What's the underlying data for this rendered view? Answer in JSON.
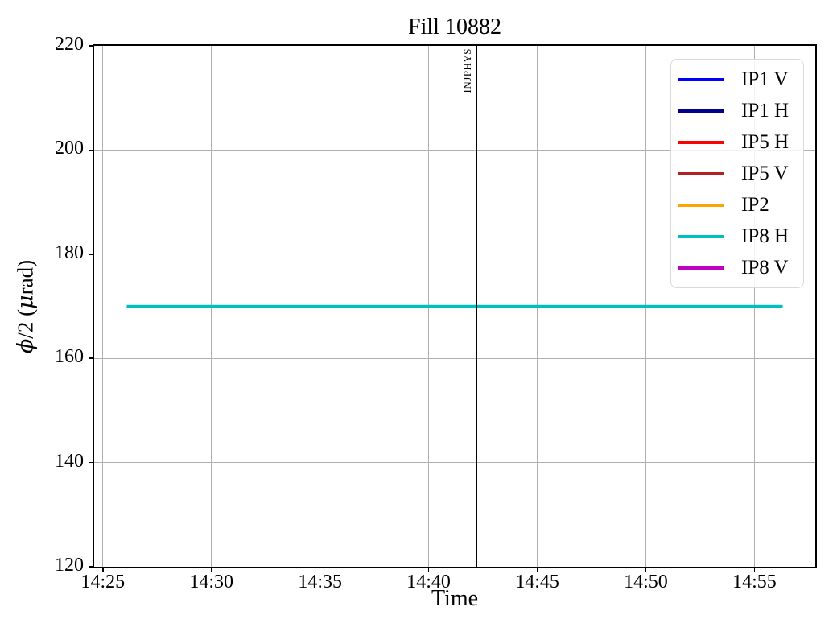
{
  "chart_data": {
    "type": "line",
    "title": "Fill 10882",
    "xlabel": "Time",
    "ylabel": "ϕ/2 (μrad)",
    "x_unit": "minutes after 14:00",
    "xlim": [
      24.6,
      57.8
    ],
    "ylim": [
      120,
      220
    ],
    "x_ticks": [
      {
        "value": 25,
        "label": "14:25"
      },
      {
        "value": 30,
        "label": "14:30"
      },
      {
        "value": 35,
        "label": "14:35"
      },
      {
        "value": 40,
        "label": "14:40"
      },
      {
        "value": 45,
        "label": "14:45"
      },
      {
        "value": 50,
        "label": "14:50"
      },
      {
        "value": 55,
        "label": "14:55"
      }
    ],
    "y_ticks": [
      {
        "value": 120,
        "label": "120"
      },
      {
        "value": 140,
        "label": "140"
      },
      {
        "value": 160,
        "label": "160"
      },
      {
        "value": 180,
        "label": "180"
      },
      {
        "value": 200,
        "label": "200"
      },
      {
        "value": 220,
        "label": "220"
      }
    ],
    "grid": true,
    "grid_color": "#b0b0b0",
    "legend_position": "upper right",
    "series": [
      {
        "name": "IP1 V",
        "color": "#0000ff",
        "points": []
      },
      {
        "name": "IP1 H",
        "color": "#00008b",
        "points": []
      },
      {
        "name": "IP5 H",
        "color": "#ff0000",
        "points": []
      },
      {
        "name": "IP5 V",
        "color": "#b22222",
        "points": []
      },
      {
        "name": "IP2",
        "color": "#ffa500",
        "points": []
      },
      {
        "name": "IP8 H",
        "color": "#00bfbf",
        "points": [
          {
            "x": 26.1,
            "y": 170
          },
          {
            "x": 56.3,
            "y": 170
          }
        ]
      },
      {
        "name": "IP8 V",
        "color": "#bf00bf",
        "points": []
      }
    ],
    "annotations": [
      {
        "type": "vline",
        "x": 42.2,
        "label": "INJPHYS",
        "color": "#000000"
      }
    ]
  }
}
